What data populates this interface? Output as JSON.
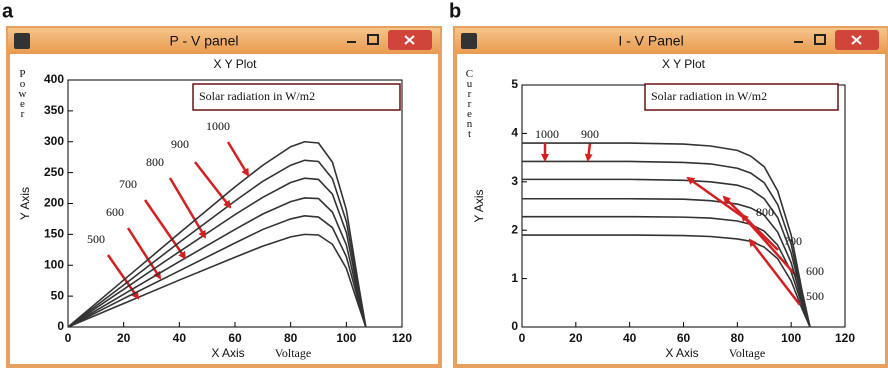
{
  "chart_data": [
    {
      "type": "line",
      "panel_label": "a",
      "window_title": "P - V panel",
      "title": "X Y Plot",
      "y_label": "Power",
      "y_axis_label": "Y Axis",
      "x_axis_label": "X Axis",
      "x_label": "Voltage",
      "legend_title": "Solar radiation in W/m2",
      "xlim": [
        0,
        120
      ],
      "ylim": [
        0,
        400
      ],
      "xticks": [
        0,
        20,
        40,
        60,
        80,
        100,
        120
      ],
      "yticks": [
        0,
        50,
        100,
        150,
        200,
        250,
        300,
        350,
        400
      ],
      "x": [
        0,
        20,
        40,
        60,
        70,
        80,
        85,
        90,
        95,
        100,
        104,
        107
      ],
      "series": [
        {
          "name": "500",
          "color": "#333333",
          "values": [
            0,
            38,
            76,
            113,
            131,
            146,
            150,
            149,
            134,
            95,
            40,
            0
          ]
        },
        {
          "name": "600",
          "color": "#333333",
          "values": [
            0,
            46,
            91,
            136,
            158,
            175,
            180,
            178,
            161,
            114,
            48,
            0
          ]
        },
        {
          "name": "700",
          "color": "#333333",
          "values": [
            0,
            53,
            106,
            158,
            183,
            203,
            209,
            208,
            186,
            133,
            55,
            0
          ]
        },
        {
          "name": "800",
          "color": "#333333",
          "values": [
            0,
            61,
            122,
            182,
            210,
            234,
            241,
            239,
            215,
            153,
            63,
            0
          ]
        },
        {
          "name": "900",
          "color": "#333333",
          "values": [
            0,
            68,
            137,
            204,
            236,
            262,
            270,
            268,
            240,
            171,
            71,
            0
          ]
        },
        {
          "name": "1000",
          "color": "#333333",
          "values": [
            0,
            76,
            152,
            227,
            262,
            292,
            300,
            298,
            267,
            190,
            79,
            0
          ]
        }
      ]
    },
    {
      "type": "line",
      "panel_label": "b",
      "window_title": "I - V Panel",
      "title": "X Y Plot",
      "y_label": "Current",
      "y_axis_label": "Y Axis",
      "x_axis_label": "X Axis",
      "x_label": "Voltage",
      "legend_title": "Solar radiation in W/m2",
      "xlim": [
        0,
        120
      ],
      "ylim": [
        0,
        5
      ],
      "xticks": [
        0,
        20,
        40,
        60,
        80,
        100,
        120
      ],
      "yticks": [
        0,
        1,
        2,
        3,
        4,
        5
      ],
      "x": [
        0,
        20,
        40,
        60,
        70,
        80,
        85,
        90,
        95,
        100,
        104,
        107
      ],
      "series": [
        {
          "name": "500",
          "color": "#333333",
          "values": [
            1.9,
            1.9,
            1.9,
            1.89,
            1.87,
            1.82,
            1.77,
            1.65,
            1.41,
            0.95,
            0.38,
            0
          ]
        },
        {
          "name": "600",
          "color": "#333333",
          "values": [
            2.28,
            2.28,
            2.28,
            2.27,
            2.25,
            2.19,
            2.12,
            1.98,
            1.69,
            1.14,
            0.46,
            0
          ]
        },
        {
          "name": "700",
          "color": "#333333",
          "values": [
            2.65,
            2.65,
            2.65,
            2.64,
            2.61,
            2.54,
            2.46,
            2.31,
            1.96,
            1.33,
            0.53,
            0
          ]
        },
        {
          "name": "800",
          "color": "#333333",
          "values": [
            3.05,
            3.05,
            3.05,
            3.03,
            3.0,
            2.93,
            2.84,
            2.65,
            2.26,
            1.53,
            0.61,
            0
          ]
        },
        {
          "name": "900",
          "color": "#333333",
          "values": [
            3.42,
            3.42,
            3.42,
            3.4,
            3.37,
            3.28,
            3.18,
            2.98,
            2.53,
            1.71,
            0.68,
            0
          ]
        },
        {
          "name": "1000",
          "color": "#333333",
          "values": [
            3.8,
            3.8,
            3.8,
            3.78,
            3.74,
            3.65,
            3.53,
            3.31,
            2.81,
            1.9,
            0.76,
            0
          ]
        }
      ]
    }
  ]
}
